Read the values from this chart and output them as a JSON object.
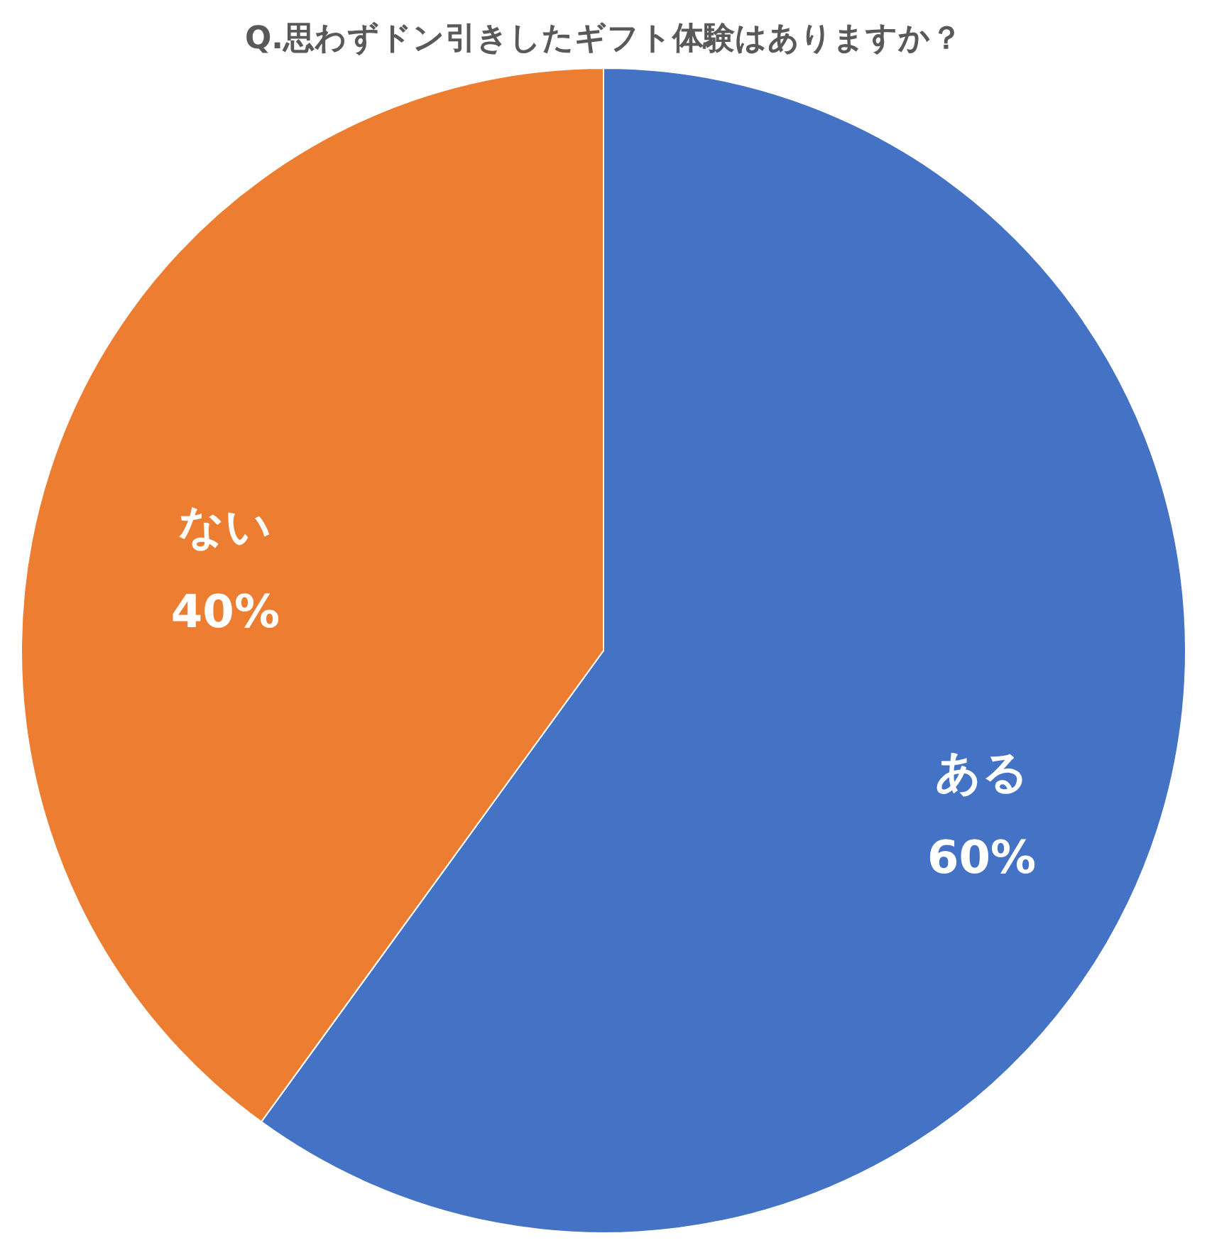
{
  "chart_data": {
    "type": "pie",
    "title": "Q.思わずドン引きしたギフト体験はありますか？",
    "categories": [
      "ある",
      "ない"
    ],
    "values": [
      60,
      40
    ],
    "colors": [
      "#4472c4",
      "#ed7d31"
    ],
    "value_labels": [
      "60%",
      "40%"
    ],
    "legend": false
  }
}
